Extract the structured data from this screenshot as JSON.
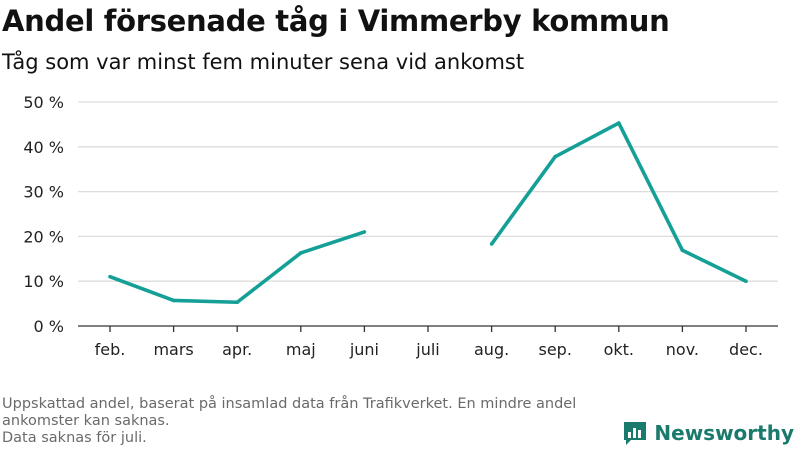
{
  "title": "Andel försenade tåg i Vimmerby kommun",
  "subtitle": "Tåg som var minst fem minuter sena vid ankomst",
  "footer": {
    "line1": "Uppskattad andel, baserat på insamlad data från Trafikverket. En mindre andel ankomster kan saknas.",
    "line2": "Data saknas för juli."
  },
  "brand": {
    "name": "Newsworthy"
  },
  "colors": {
    "line": "#14a096",
    "grid": "#dddddd",
    "axis": "#333333",
    "brand": "#1a7a6c"
  },
  "chart_data": {
    "type": "line",
    "title": "Andel försenade tåg i Vimmerby kommun",
    "subtitle": "Tåg som var minst fem minuter sena vid ankomst",
    "xlabel": "",
    "ylabel": "",
    "categories": [
      "feb.",
      "mars",
      "apr.",
      "maj",
      "juni",
      "juli",
      "aug.",
      "sep.",
      "okt.",
      "nov.",
      "dec."
    ],
    "series": [
      {
        "name": "Andel försenade tåg",
        "values": [
          11,
          5.7,
          5.3,
          16.3,
          21,
          null,
          18.3,
          37.8,
          45.3,
          16.9,
          10
        ]
      }
    ],
    "ylim": [
      0,
      50
    ],
    "yticks": [
      0,
      10,
      20,
      30,
      40,
      50
    ],
    "ytick_labels": [
      "0 %",
      "10 %",
      "20 %",
      "30 %",
      "40 %",
      "50 %"
    ],
    "grid": true,
    "legend": "none"
  }
}
